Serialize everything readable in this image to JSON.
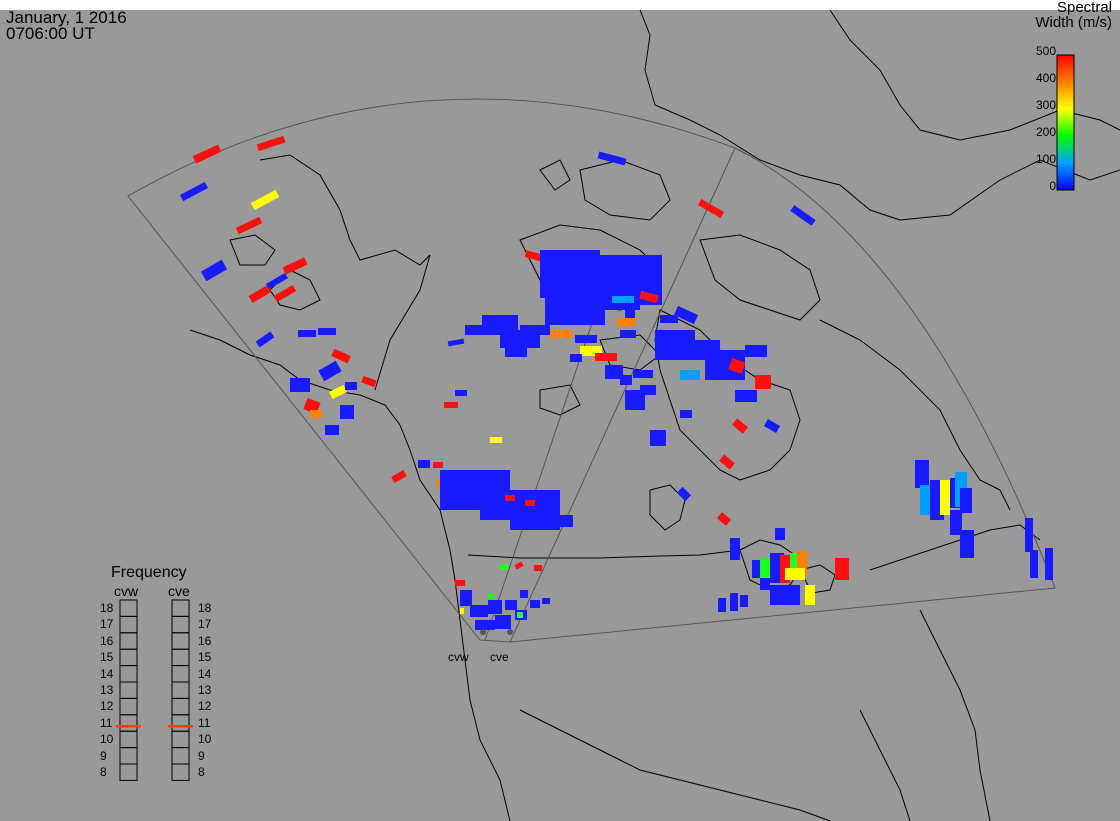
{
  "header": {
    "date": "January, 1 2016",
    "time": "0706:00 UT"
  },
  "colorbar": {
    "title_line1": "Spectral",
    "title_line2": "Width (m/s)",
    "ticks": [
      "500",
      "400",
      "300",
      "200",
      "100",
      "0"
    ],
    "range": [
      0,
      500
    ],
    "colors": [
      "#0000ff",
      "#00a0ff",
      "#00ff00",
      "#ffff00",
      "#ff8000",
      "#ff0000"
    ]
  },
  "frequency_panel": {
    "title": "Frequency",
    "radars": [
      {
        "name": "cvw",
        "value": 10.8
      },
      {
        "name": "cve",
        "value": 10.8
      }
    ],
    "scale": [
      "18",
      "17",
      "16",
      "15",
      "14",
      "13",
      "12",
      "11",
      "10",
      "9",
      "8"
    ],
    "marker_color": "#ff4000"
  },
  "radar_sites": [
    "cvw",
    "cve"
  ],
  "map": {
    "background": "#999999",
    "fov_line_color": "#555555",
    "coast_color": "#000000"
  }
}
